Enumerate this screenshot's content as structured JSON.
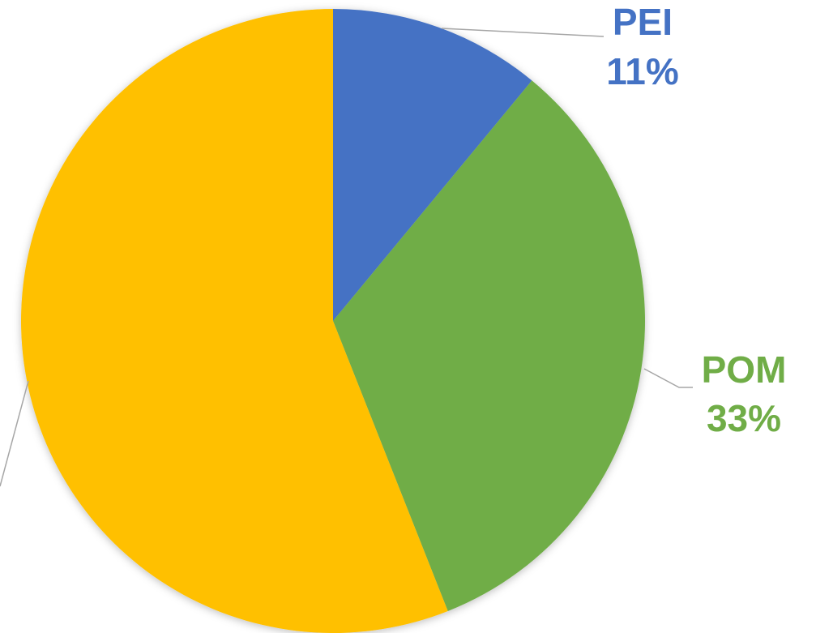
{
  "chart_data": {
    "type": "pie",
    "categories": [
      "PEI",
      "POM",
      null
    ],
    "values": [
      11,
      33,
      56
    ],
    "value_labels": [
      "11%",
      "33%",
      null
    ],
    "colors": [
      "#4472c4",
      "#70ad47",
      "#ffc000"
    ]
  }
}
